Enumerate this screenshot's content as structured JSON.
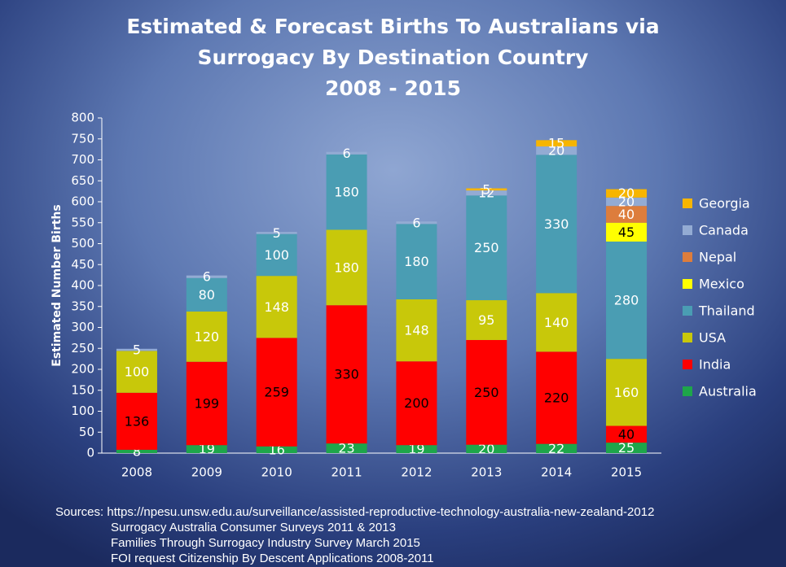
{
  "chart_data": {
    "type": "stacked_bar",
    "title": "Estimated & Forecast Births To Australians via\nSurrogacy By Destination Country\n2008 - 2015",
    "y_label": "Estimated Number Births",
    "categories": [
      "2008",
      "2009",
      "2010",
      "2011",
      "2012",
      "2013",
      "2014",
      "2015"
    ],
    "series": [
      {
        "name": "Australia",
        "color": "#1ea64a",
        "values": [
          8,
          19,
          16,
          23,
          19,
          20,
          22,
          25
        ]
      },
      {
        "name": "India",
        "color": "#ff0000",
        "values": [
          136,
          199,
          259,
          330,
          200,
          250,
          220,
          40
        ]
      },
      {
        "name": "USA",
        "color": "#c8c80a",
        "values": [
          100,
          120,
          148,
          180,
          148,
          95,
          140,
          160
        ]
      },
      {
        "name": "Thailand",
        "color": "#4a9db3",
        "values": [
          null,
          80,
          100,
          180,
          180,
          250,
          330,
          280
        ]
      },
      {
        "name": "Mexico",
        "color": "#ffff00",
        "values": [
          null,
          null,
          null,
          null,
          null,
          null,
          null,
          45
        ]
      },
      {
        "name": "Nepal",
        "color": "#dd7d3c",
        "values": [
          null,
          null,
          null,
          null,
          null,
          null,
          null,
          40
        ]
      },
      {
        "name": "Canada",
        "color": "#93abd3",
        "values": [
          5,
          6,
          5,
          6,
          6,
          12,
          20,
          20
        ]
      },
      {
        "name": "Georgia",
        "color": "#f7b500",
        "values": [
          null,
          null,
          null,
          null,
          null,
          5,
          15,
          20
        ]
      }
    ],
    "ylim": [
      0,
      800
    ],
    "yticks": [
      0,
      50,
      100,
      150,
      200,
      250,
      300,
      350,
      400,
      450,
      500,
      550,
      600,
      650,
      700,
      750,
      800
    ],
    "grid": false,
    "legend": "right",
    "sources": [
      "Sources: https://npesu.unsw.edu.au/surveillance/assisted-reproductive-technology-australia-new-zealand-2012",
      "Surrogacy Australia Consumer Surveys 2011 & 2013",
      "Families Through Surrogacy Industry Survey March 2015",
      "FOI request Citizenship By Descent Applications 2008-2011"
    ]
  }
}
